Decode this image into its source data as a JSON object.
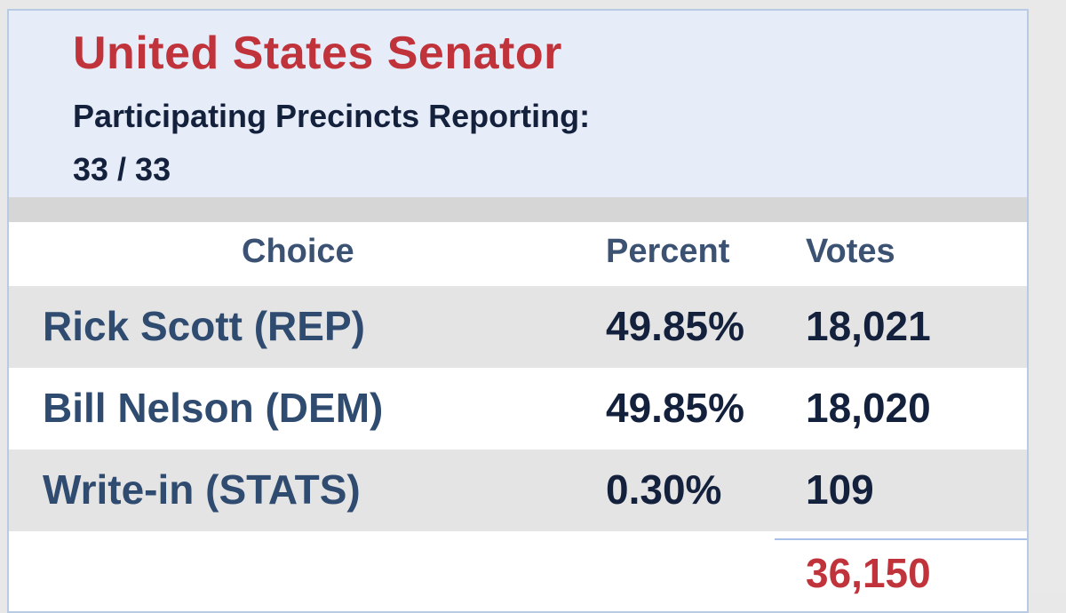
{
  "header": {
    "title": "United States Senator",
    "precincts_label": "Participating Precincts Reporting:",
    "precincts_value": "33 / 33"
  },
  "table": {
    "columns": [
      "Choice",
      "Percent",
      "Votes"
    ],
    "rows": [
      {
        "choice": "Rick Scott (REP)",
        "percent": "49.85%",
        "votes": "18,021"
      },
      {
        "choice": "Bill Nelson (DEM)",
        "percent": "49.85%",
        "votes": "18,020"
      },
      {
        "choice": "Write-in (STATS)",
        "percent": "0.30%",
        "votes": "109"
      }
    ],
    "total_votes": "36,150"
  },
  "colors": {
    "title": "#c0333b",
    "header_bg": "#e6ecf8",
    "choice_text": "#2f4b70",
    "value_text": "#14213d",
    "row_shade": "#e4e4e4"
  }
}
